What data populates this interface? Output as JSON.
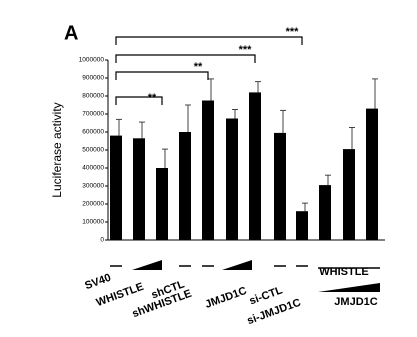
{
  "chart_data": {
    "type": "bar",
    "panel_label": "A",
    "y_label": "Luciferase activity",
    "categories": [
      null,
      null,
      null,
      null,
      null,
      null,
      null,
      null,
      null,
      null,
      null,
      null
    ],
    "values": [
      580000,
      565000,
      400000,
      600000,
      775000,
      675000,
      820000,
      595000,
      160000,
      305000,
      505000,
      730000
    ],
    "errors": [
      90000,
      90000,
      105000,
      150000,
      120000,
      50000,
      60000,
      125000,
      45000,
      55000,
      120000,
      165000
    ],
    "color": "#000000",
    "ylim": [
      0,
      1000000
    ],
    "yticks": [
      0,
      100000,
      200000,
      300000,
      400000,
      500000,
      600000,
      700000,
      800000,
      900000,
      1000000
    ],
    "significance": [
      "**",
      "**",
      "***",
      "***"
    ],
    "group_labels": [
      "SV40",
      "WHISTLE",
      "shCTL",
      "shWHISTLE",
      "JMJD1C",
      "si-CTL",
      "si-JMJD1C",
      "WHISTLE",
      "JMJD1C"
    ]
  }
}
